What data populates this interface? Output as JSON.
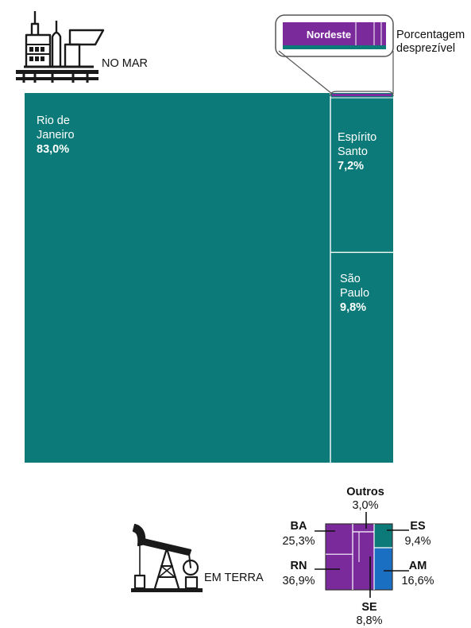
{
  "colors": {
    "teal": "#0b7a78",
    "purple": "#7b2a9c",
    "blue": "#1b6fc2",
    "line": "#ffffff",
    "text": "#111111",
    "icon": "#1a1a1a"
  },
  "icons": {
    "offshore": "offshore-platform-icon",
    "onshore": "pumpjack-icon"
  },
  "chart_data": [
    {
      "type": "treemap",
      "group_label": "NO MAR",
      "annotation": "Porcentagem desprezível",
      "zoom_label": "Nordeste",
      "items": [
        {
          "name": "Rio de Janeiro",
          "label_lines": [
            "Rio de",
            "Janeiro"
          ],
          "value": 83.0,
          "value_label": "83,0%"
        },
        {
          "name": "Espírito Santo",
          "label_lines": [
            "Espírito",
            "Santo"
          ],
          "value": 7.2,
          "value_label": "7,2%"
        },
        {
          "name": "São Paulo",
          "label_lines": [
            "São",
            "Paulo"
          ],
          "value": 9.8,
          "value_label": "9,8%"
        },
        {
          "name": "Nordeste",
          "value_label": "Porcentagem desprezível"
        }
      ]
    },
    {
      "type": "treemap",
      "group_label": "EM TERRA",
      "items": [
        {
          "name": "BA",
          "value": 25.3,
          "value_label": "25,3%",
          "color": "purple"
        },
        {
          "name": "RN",
          "value": 36.9,
          "value_label": "36,9%",
          "color": "purple"
        },
        {
          "name": "Outros",
          "value": 3.0,
          "value_label": "3,0%",
          "color": "purple"
        },
        {
          "name": "SE",
          "value": 8.8,
          "value_label": "8,8%",
          "color": "purple"
        },
        {
          "name": "ES",
          "value": 9.4,
          "value_label": "9,4%",
          "color": "teal"
        },
        {
          "name": "AM",
          "value": 16.6,
          "value_label": "16,6%",
          "color": "blue"
        }
      ]
    }
  ]
}
